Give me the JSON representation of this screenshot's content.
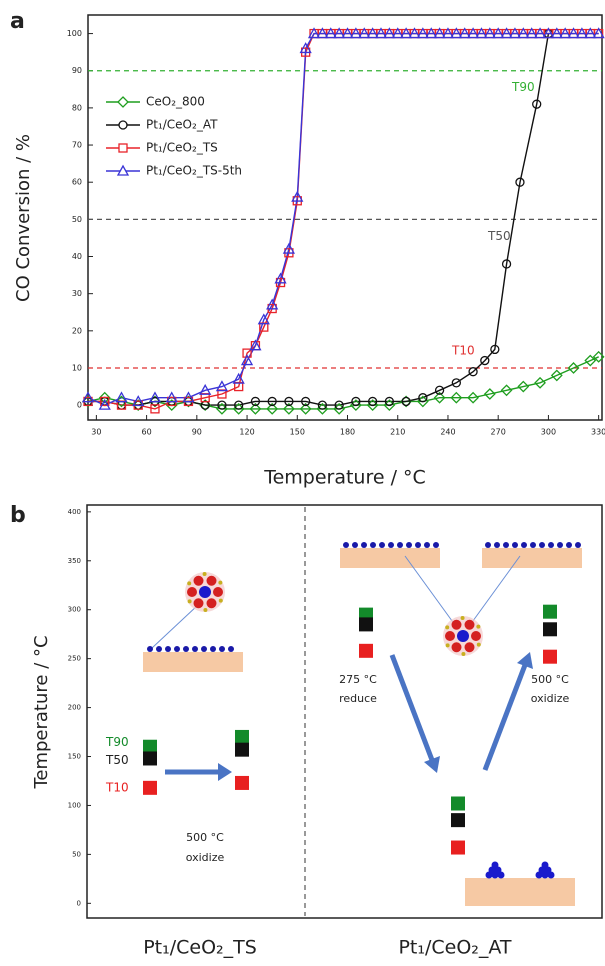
{
  "chart_data": [
    {
      "type": "line",
      "panel_label": "a",
      "x_label": "Temperature / °C",
      "y_label": "CO Conversion / %",
      "xlim": [
        25,
        332
      ],
      "ylim": [
        -4,
        105
      ],
      "xticks": [
        30,
        60,
        90,
        120,
        150,
        180,
        210,
        240,
        270,
        300,
        330
      ],
      "yticks": [
        0,
        10,
        20,
        30,
        40,
        50,
        60,
        70,
        80,
        90,
        100
      ],
      "legend": "upper-left",
      "reference_lines": [
        {
          "value": 90,
          "label": "T90",
          "color": "#33b033"
        },
        {
          "value": 50,
          "label": "T50",
          "color": "#555555"
        },
        {
          "value": 10,
          "label": "T10",
          "color": "#e03030"
        }
      ],
      "series": [
        {
          "name": "CeO₂_800",
          "color": "#1f9e1f",
          "marker": "diamond",
          "x": [
            25,
            35,
            45,
            55,
            65,
            75,
            85,
            95,
            105,
            115,
            125,
            135,
            145,
            155,
            165,
            175,
            185,
            195,
            205,
            215,
            225,
            235,
            245,
            255,
            265,
            275,
            285,
            295,
            305,
            315,
            325,
            330
          ],
          "values": [
            1,
            2,
            1,
            0,
            1,
            0,
            1,
            0,
            -1,
            -1,
            -1,
            -1,
            -1,
            -1,
            -1,
            -1,
            0,
            0,
            0,
            1,
            1,
            2,
            2,
            2,
            3,
            4,
            5,
            6,
            8,
            10,
            12,
            13
          ]
        },
        {
          "name": "Pt₁/CeO₂_AT",
          "color": "#111111",
          "marker": "circle",
          "x": [
            25,
            35,
            45,
            55,
            65,
            75,
            85,
            95,
            105,
            115,
            125,
            135,
            145,
            155,
            165,
            175,
            185,
            195,
            205,
            215,
            225,
            235,
            245,
            255,
            262,
            268,
            275,
            283,
            293,
            300
          ],
          "values": [
            1,
            1,
            0,
            0,
            1,
            1,
            1,
            0,
            0,
            0,
            1,
            1,
            1,
            1,
            0,
            0,
            1,
            1,
            1,
            1,
            2,
            4,
            6,
            9,
            12,
            15,
            38,
            60,
            81,
            100
          ]
        },
        {
          "name": "Pt₁/CeO₂_TS",
          "color": "#e8232a",
          "marker": "square",
          "x": [
            25,
            35,
            45,
            55,
            65,
            75,
            85,
            95,
            105,
            115,
            120,
            125,
            130,
            135,
            140,
            145,
            150,
            155,
            160,
            165,
            170,
            175,
            180,
            185,
            190,
            195,
            200,
            205,
            210,
            215,
            220,
            225,
            230,
            235,
            240,
            245,
            250,
            255,
            260,
            265,
            270,
            275,
            280,
            285,
            290,
            295,
            300,
            305,
            310,
            315,
            320,
            325,
            330
          ],
          "values": [
            1,
            1,
            0,
            0,
            -1,
            1,
            1,
            2,
            3,
            5,
            14,
            16,
            21,
            26,
            33,
            41,
            55,
            95,
            100,
            100,
            100,
            100,
            100,
            100,
            100,
            100,
            100,
            100,
            100,
            100,
            100,
            100,
            100,
            100,
            100,
            100,
            100,
            100,
            100,
            100,
            100,
            100,
            100,
            100,
            100,
            100,
            100,
            100,
            100,
            100,
            100,
            100,
            100
          ]
        },
        {
          "name": "Pt₁/CeO₂_TS-5th",
          "color": "#3a34d6",
          "marker": "triangle",
          "x": [
            25,
            35,
            45,
            55,
            65,
            75,
            85,
            95,
            105,
            115,
            120,
            125,
            130,
            135,
            140,
            145,
            150,
            155,
            160,
            165,
            170,
            175,
            180,
            185,
            190,
            195,
            200,
            205,
            210,
            215,
            220,
            225,
            230,
            235,
            240,
            245,
            250,
            255,
            260,
            265,
            270,
            275,
            280,
            285,
            290,
            295,
            300,
            305,
            310,
            315,
            320,
            325,
            330
          ],
          "values": [
            2,
            0,
            2,
            1,
            2,
            2,
            2,
            4,
            5,
            7,
            12,
            16,
            23,
            27,
            34,
            42,
            56,
            96,
            100,
            100,
            100,
            100,
            100,
            100,
            100,
            100,
            100,
            100,
            100,
            100,
            100,
            100,
            100,
            100,
            100,
            100,
            100,
            100,
            100,
            100,
            100,
            100,
            100,
            100,
            100,
            100,
            100,
            100,
            100,
            100,
            100,
            100,
            100
          ]
        }
      ]
    },
    {
      "type": "marker",
      "panel_label": "b",
      "y_label": "Temperature / °C",
      "ylim": [
        -15,
        407
      ],
      "yticks": [
        0,
        50,
        100,
        150,
        200,
        250,
        300,
        350,
        400
      ],
      "groups": [
        "Pt₁/CeO₂_TS",
        "Pt₁/CeO₂_AT"
      ],
      "series": [
        {
          "name": "T90",
          "color": "#138a2a",
          "values": [
            160,
            170,
            295,
            102,
            298
          ]
        },
        {
          "name": "T50",
          "color": "#111111",
          "values": [
            148,
            157,
            285,
            85,
            280
          ]
        },
        {
          "name": "T10",
          "color": "#e82020",
          "values": [
            118,
            123,
            258,
            57,
            252
          ]
        }
      ],
      "annotations": [
        "500 °C",
        "oxidize",
        "275 °C",
        "reduce",
        "500 °C",
        "oxidize"
      ]
    }
  ]
}
